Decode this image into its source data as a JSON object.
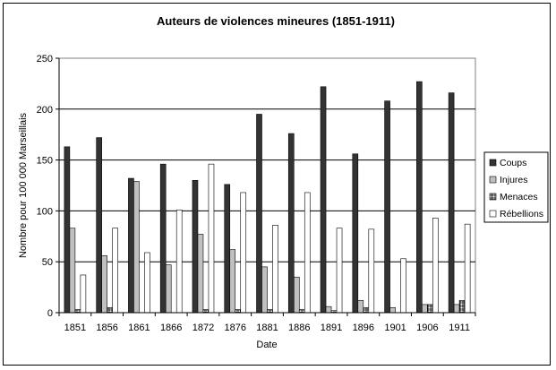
{
  "chart_data": {
    "type": "bar",
    "title": "Auteurs de violences mineures (1851-1911)",
    "xlabel": "Date",
    "ylabel": "Nombre pour 100 000 Marseillais",
    "ylim": [
      0,
      250
    ],
    "yticks": [
      0,
      50,
      100,
      150,
      200,
      250
    ],
    "grid": true,
    "legend_position": "right",
    "categories": [
      "1851",
      "1856",
      "1861",
      "1866",
      "1872",
      "1876",
      "1881",
      "1886",
      "1891",
      "1896",
      "1901",
      "1906",
      "1911"
    ],
    "series": [
      {
        "name": "Coups",
        "color": "#333333",
        "pattern": "solid",
        "values": [
          163,
          172,
          132,
          146,
          130,
          126,
          195,
          176,
          222,
          156,
          208,
          227,
          216
        ]
      },
      {
        "name": "Injures",
        "color": "#c0c0c0",
        "pattern": "solid",
        "values": [
          83,
          56,
          129,
          47,
          77,
          62,
          45,
          35,
          6,
          12,
          5,
          8,
          8
        ]
      },
      {
        "name": "Menaces",
        "color": "#ffffff",
        "pattern": "grid",
        "values": [
          3,
          5,
          0,
          0,
          3,
          3,
          3,
          3,
          2,
          5,
          0,
          8,
          12
        ]
      },
      {
        "name": "Rébellions",
        "color": "#ffffff",
        "pattern": "solid",
        "values": [
          37,
          83,
          59,
          101,
          146,
          118,
          86,
          118,
          83,
          82,
          53,
          93,
          87
        ]
      }
    ]
  }
}
